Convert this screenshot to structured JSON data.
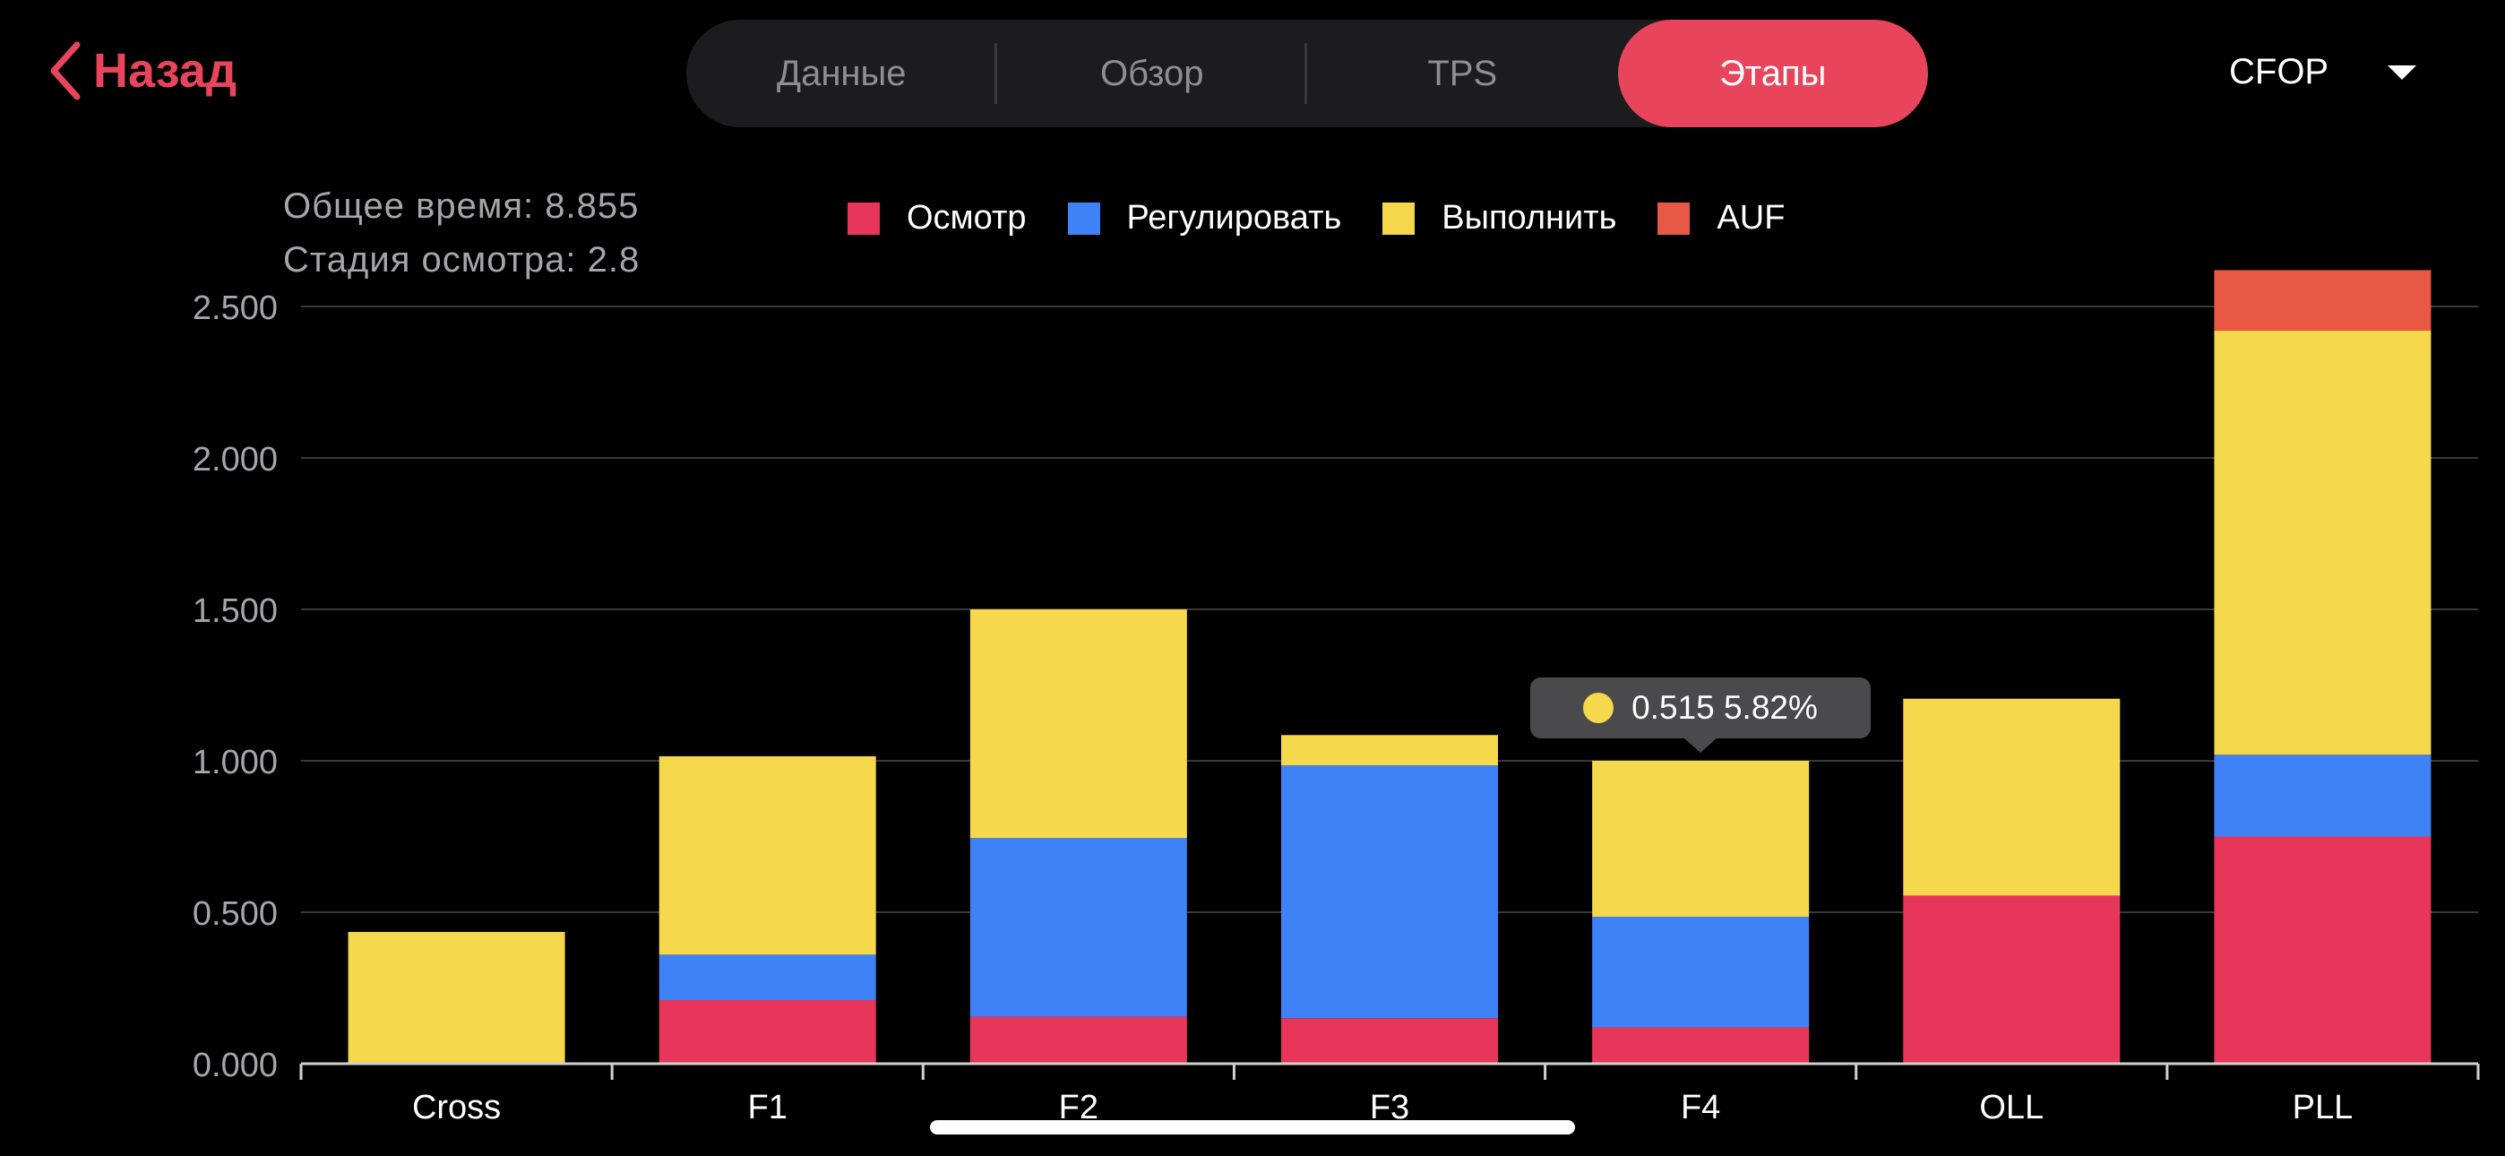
{
  "nav": {
    "back_label": "Назад"
  },
  "tabs": [
    {
      "label": "Данные"
    },
    {
      "label": "Обзор"
    },
    {
      "label": "TPS"
    },
    {
      "label": "Этапы"
    }
  ],
  "method": {
    "label": "CFOP"
  },
  "info": {
    "total": "Общее время: 8.855",
    "inspection": "Стадия осмотра: 2.8"
  },
  "tooltip": {
    "text": "0.515 5.82%",
    "color": "#f5d84b"
  },
  "colors": {
    "accent": "#e8455c",
    "grid": "#3a3a3c",
    "axis": "#d0d0d0",
    "tick": "#a5a5aa"
  },
  "chart_data": {
    "type": "bar",
    "stacked": true,
    "categories": [
      "Cross",
      "F1",
      "F2",
      "F3",
      "F4",
      "OLL",
      "PLL"
    ],
    "series": [
      {
        "name": "Осмотр",
        "color": "#e8355a",
        "values": [
          0,
          0.21,
          0.155,
          0.15,
          0.12,
          0.555,
          0.75
        ]
      },
      {
        "name": "Регулировать",
        "color": "#3f82f7",
        "values": [
          0,
          0.15,
          0.59,
          0.835,
          0.365,
          0,
          0.27
        ]
      },
      {
        "name": "Выполнить",
        "color": "#f5d84b",
        "values": [
          0.435,
          0.655,
          0.755,
          0.1,
          0.515,
          0.65,
          1.4
        ]
      },
      {
        "name": "AUF",
        "color": "#e85845",
        "values": [
          0,
          0,
          0,
          0,
          0,
          0,
          0.2
        ]
      }
    ],
    "yticks": [
      "0.000",
      "0.500",
      "1.000",
      "1.500",
      "2.000",
      "2.500"
    ],
    "ylim": [
      0,
      2.5
    ],
    "grid": true,
    "legend_position": "top"
  }
}
